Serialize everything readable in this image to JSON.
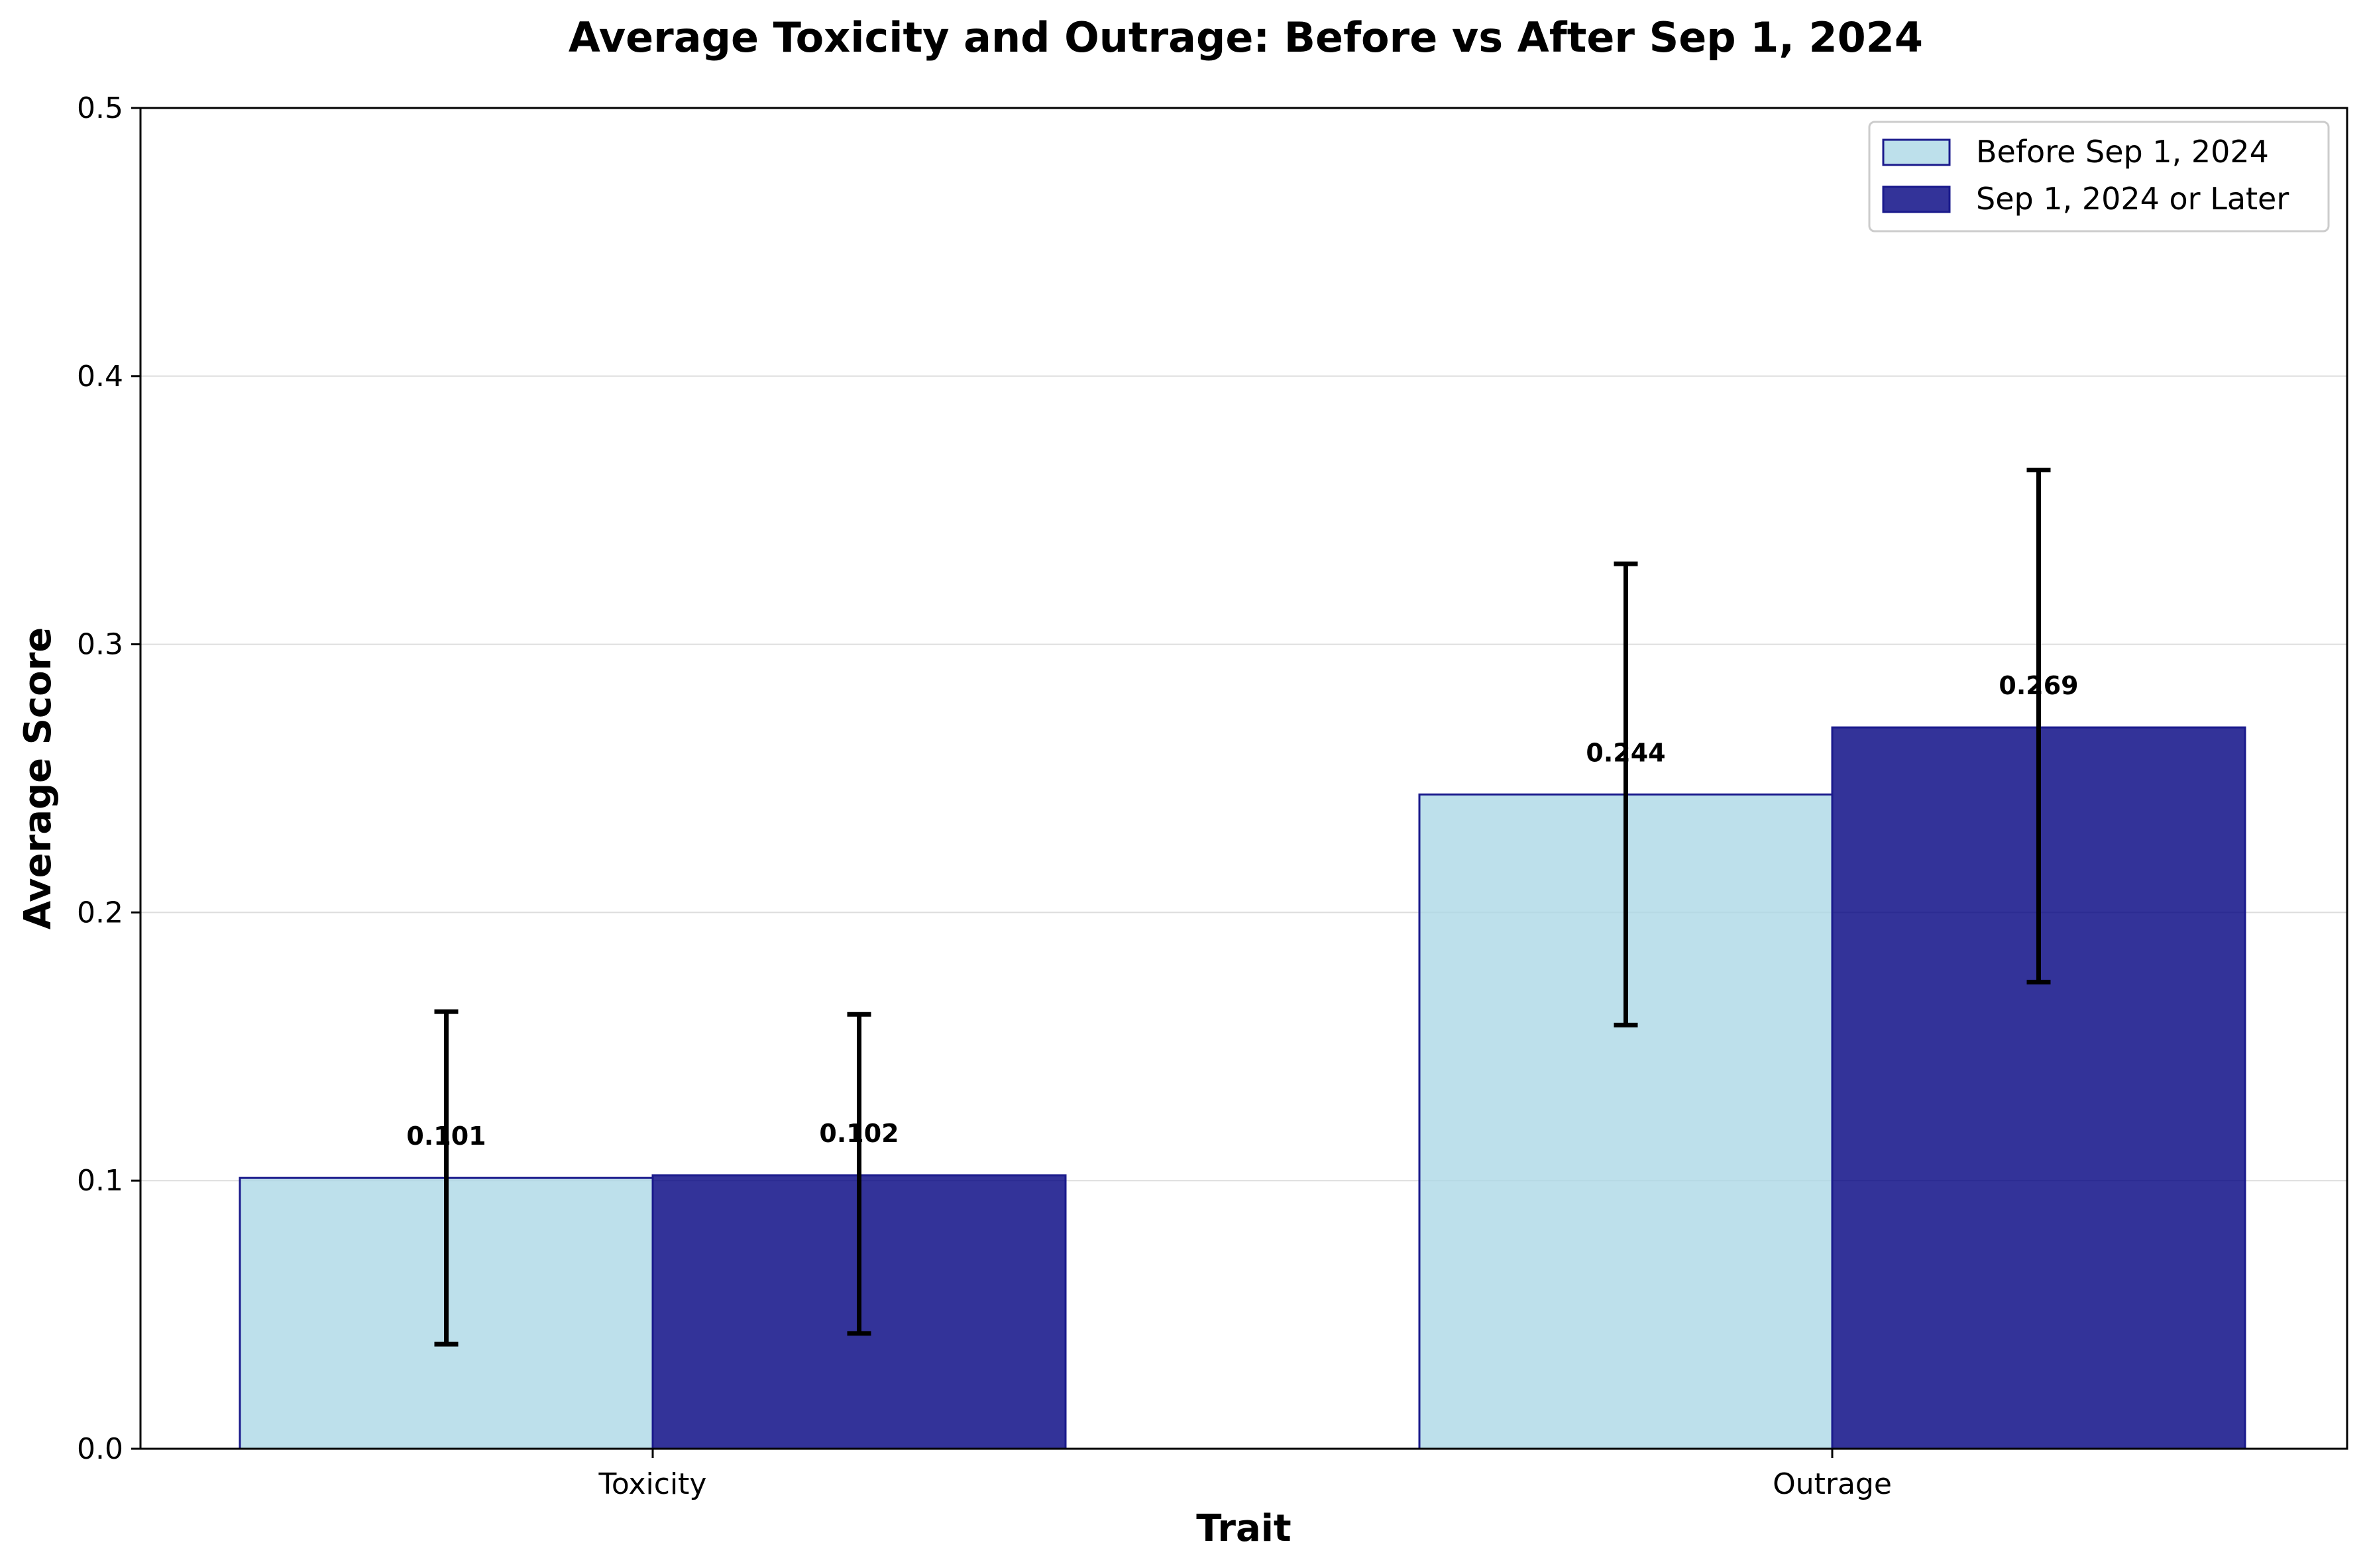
{
  "chart_data": {
    "type": "bar",
    "title": "Average Toxicity and Outrage: Before vs After Sep 1, 2024",
    "xlabel": "Trait",
    "ylabel": "Average Score",
    "categories": [
      "Toxicity",
      "Outrage"
    ],
    "ylim": [
      0,
      0.5
    ],
    "yticks": [
      0.0,
      0.1,
      0.2,
      0.3,
      0.4,
      0.5
    ],
    "ytick_labels": [
      "0.0",
      "0.1",
      "0.2",
      "0.3",
      "0.4",
      "0.5"
    ],
    "grid": true,
    "legend_position": "top-right",
    "series": [
      {
        "name": "Before Sep 1, 2024",
        "color": "#add8e6",
        "edge_color": "#1a1a8c",
        "values": [
          0.101,
          0.244
        ],
        "value_labels": [
          "0.101",
          "0.244"
        ],
        "error_low": [
          0.039,
          0.158
        ],
        "error_high": [
          0.163,
          0.33
        ]
      },
      {
        "name": "Sep 1, 2024 or Later",
        "color": "#000080",
        "edge_color": "#1a1a8c",
        "values": [
          0.102,
          0.269
        ],
        "value_labels": [
          "0.102",
          "0.269"
        ],
        "error_low": [
          0.043,
          0.174
        ],
        "error_high": [
          0.162,
          0.365
        ]
      }
    ]
  }
}
